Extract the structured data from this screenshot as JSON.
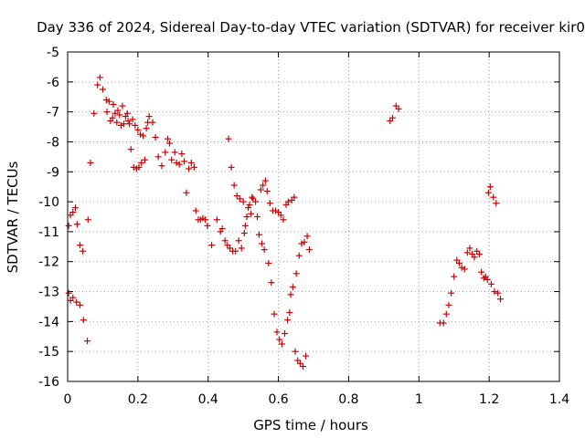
{
  "chart_data": {
    "type": "scatter",
    "title": "Day 336 of 2024, Sidereal Day-to-day VTEC variation (SDTVAR) for receiver kir0",
    "xlabel": "GPS time / hours",
    "ylabel": "SDTVAR / TECUs",
    "xlim": [
      0,
      1.4
    ],
    "ylim": [
      -16,
      -5
    ],
    "xticks": [
      0,
      0.2,
      0.4,
      0.6,
      0.8,
      1,
      1.2,
      1.4
    ],
    "xtick_labels": [
      "0",
      "0.2",
      "0.4",
      "0.6",
      "0.8",
      "1",
      "1.2",
      "1.4"
    ],
    "yticks": [
      -16,
      -15,
      -14,
      -13,
      -12,
      -11,
      -10,
      -9,
      -8,
      -7,
      -6,
      -5
    ],
    "ytick_labels": [
      "-16",
      "-15",
      "-14",
      "-13",
      "-12",
      "-11",
      "-10",
      "-9",
      "-8",
      "-7",
      "-6",
      "-5"
    ],
    "grid": true,
    "marker": "+",
    "color": "#cc0000",
    "series": [
      {
        "name": "kir0",
        "points": [
          [
            0.003,
            -10.8
          ],
          [
            0.008,
            -10.45
          ],
          [
            0.015,
            -10.35
          ],
          [
            0.022,
            -10.2
          ],
          [
            0.027,
            -10.75
          ],
          [
            0.035,
            -11.45
          ],
          [
            0.043,
            -11.65
          ],
          [
            0.058,
            -10.6
          ],
          [
            0.003,
            -13.05
          ],
          [
            0.008,
            -13.3
          ],
          [
            0.015,
            -13.2
          ],
          [
            0.025,
            -13.35
          ],
          [
            0.035,
            -13.45
          ],
          [
            0.045,
            -13.95
          ],
          [
            0.056,
            -14.65
          ],
          [
            0.065,
            -8.7
          ],
          [
            0.075,
            -7.05
          ],
          [
            0.085,
            -6.1
          ],
          [
            0.092,
            -5.85
          ],
          [
            0.1,
            -6.25
          ],
          [
            0.11,
            -6.6
          ],
          [
            0.112,
            -7.0
          ],
          [
            0.118,
            -6.65
          ],
          [
            0.122,
            -7.3
          ],
          [
            0.128,
            -7.2
          ],
          [
            0.13,
            -6.75
          ],
          [
            0.135,
            -7.05
          ],
          [
            0.14,
            -7.35
          ],
          [
            0.143,
            -6.95
          ],
          [
            0.148,
            -7.1
          ],
          [
            0.152,
            -7.45
          ],
          [
            0.156,
            -6.8
          ],
          [
            0.16,
            -7.4
          ],
          [
            0.165,
            -7.15
          ],
          [
            0.17,
            -7.05
          ],
          [
            0.172,
            -7.3
          ],
          [
            0.176,
            -7.4
          ],
          [
            0.18,
            -8.25
          ],
          [
            0.185,
            -7.25
          ],
          [
            0.188,
            -8.85
          ],
          [
            0.192,
            -7.45
          ],
          [
            0.196,
            -8.9
          ],
          [
            0.2,
            -7.6
          ],
          [
            0.203,
            -8.85
          ],
          [
            0.207,
            -7.75
          ],
          [
            0.21,
            -8.7
          ],
          [
            0.215,
            -7.8
          ],
          [
            0.22,
            -8.6
          ],
          [
            0.224,
            -7.55
          ],
          [
            0.228,
            -7.35
          ],
          [
            0.232,
            -7.15
          ],
          [
            0.242,
            -7.35
          ],
          [
            0.25,
            -7.85
          ],
          [
            0.258,
            -8.5
          ],
          [
            0.268,
            -8.8
          ],
          [
            0.278,
            -8.35
          ],
          [
            0.285,
            -7.9
          ],
          [
            0.29,
            -8.05
          ],
          [
            0.296,
            -8.6
          ],
          [
            0.305,
            -8.35
          ],
          [
            0.31,
            -8.7
          ],
          [
            0.318,
            -8.75
          ],
          [
            0.325,
            -8.4
          ],
          [
            0.332,
            -8.65
          ],
          [
            0.338,
            -9.7
          ],
          [
            0.345,
            -8.9
          ],
          [
            0.352,
            -8.7
          ],
          [
            0.36,
            -8.85
          ],
          [
            0.365,
            -10.3
          ],
          [
            0.372,
            -10.6
          ],
          [
            0.378,
            -10.6
          ],
          [
            0.385,
            -10.55
          ],
          [
            0.392,
            -10.6
          ],
          [
            0.398,
            -10.8
          ],
          [
            0.41,
            -11.45
          ],
          [
            0.425,
            -10.6
          ],
          [
            0.435,
            -11.0
          ],
          [
            0.44,
            -10.9
          ],
          [
            0.448,
            -11.3
          ],
          [
            0.455,
            -11.45
          ],
          [
            0.458,
            -7.9
          ],
          [
            0.462,
            -11.55
          ],
          [
            0.466,
            -8.85
          ],
          [
            0.47,
            -11.65
          ],
          [
            0.474,
            -9.45
          ],
          [
            0.478,
            -11.65
          ],
          [
            0.482,
            -9.8
          ],
          [
            0.487,
            -11.3
          ],
          [
            0.49,
            -9.9
          ],
          [
            0.495,
            -11.55
          ],
          [
            0.5,
            -10.0
          ],
          [
            0.503,
            -11.05
          ],
          [
            0.506,
            -10.8
          ],
          [
            0.51,
            -10.5
          ],
          [
            0.514,
            -10.2
          ],
          [
            0.518,
            -10.1
          ],
          [
            0.522,
            -10.4
          ],
          [
            0.525,
            -9.85
          ],
          [
            0.528,
            -9.9
          ],
          [
            0.535,
            -10.0
          ],
          [
            0.54,
            -10.5
          ],
          [
            0.545,
            -11.1
          ],
          [
            0.55,
            -9.6
          ],
          [
            0.553,
            -11.4
          ],
          [
            0.556,
            -9.45
          ],
          [
            0.56,
            -11.6
          ],
          [
            0.563,
            -9.3
          ],
          [
            0.568,
            -9.65
          ],
          [
            0.572,
            -12.05
          ],
          [
            0.576,
            -10.05
          ],
          [
            0.58,
            -12.7
          ],
          [
            0.584,
            -10.3
          ],
          [
            0.588,
            -13.75
          ],
          [
            0.592,
            -10.3
          ],
          [
            0.596,
            -14.35
          ],
          [
            0.6,
            -10.35
          ],
          [
            0.603,
            -14.6
          ],
          [
            0.607,
            -10.45
          ],
          [
            0.61,
            -14.75
          ],
          [
            0.614,
            -10.6
          ],
          [
            0.618,
            -14.4
          ],
          [
            0.622,
            -10.1
          ],
          [
            0.626,
            -13.95
          ],
          [
            0.628,
            -10.0
          ],
          [
            0.632,
            -13.7
          ],
          [
            0.635,
            -13.1
          ],
          [
            0.638,
            -9.95
          ],
          [
            0.641,
            -12.85
          ],
          [
            0.645,
            -9.85
          ],
          [
            0.648,
            -15.0
          ],
          [
            0.651,
            -12.4
          ],
          [
            0.655,
            -15.3
          ],
          [
            0.659,
            -11.8
          ],
          [
            0.662,
            -15.4
          ],
          [
            0.666,
            -11.4
          ],
          [
            0.67,
            -15.5
          ],
          [
            0.674,
            -11.35
          ],
          [
            0.678,
            -15.15
          ],
          [
            0.682,
            -11.15
          ],
          [
            0.688,
            -11.6
          ],
          [
            0.918,
            -7.3
          ],
          [
            0.925,
            -7.2
          ],
          [
            0.935,
            -6.8
          ],
          [
            0.942,
            -6.9
          ],
          [
            1.06,
            -14.05
          ],
          [
            1.07,
            -14.05
          ],
          [
            1.078,
            -13.75
          ],
          [
            1.085,
            -13.45
          ],
          [
            1.092,
            -13.05
          ],
          [
            1.1,
            -12.5
          ],
          [
            1.108,
            -11.95
          ],
          [
            1.115,
            -12.05
          ],
          [
            1.122,
            -12.2
          ],
          [
            1.13,
            -12.25
          ],
          [
            1.138,
            -11.7
          ],
          [
            1.145,
            -11.55
          ],
          [
            1.152,
            -11.75
          ],
          [
            1.158,
            -11.85
          ],
          [
            1.165,
            -11.65
          ],
          [
            1.172,
            -11.75
          ],
          [
            1.178,
            -12.35
          ],
          [
            1.185,
            -12.55
          ],
          [
            1.19,
            -12.5
          ],
          [
            1.195,
            -12.6
          ],
          [
            1.198,
            -9.7
          ],
          [
            1.203,
            -9.5
          ],
          [
            1.206,
            -12.75
          ],
          [
            1.212,
            -9.85
          ],
          [
            1.215,
            -13.0
          ],
          [
            1.22,
            -10.05
          ],
          [
            1.225,
            -13.05
          ],
          [
            1.232,
            -13.25
          ]
        ]
      }
    ]
  }
}
